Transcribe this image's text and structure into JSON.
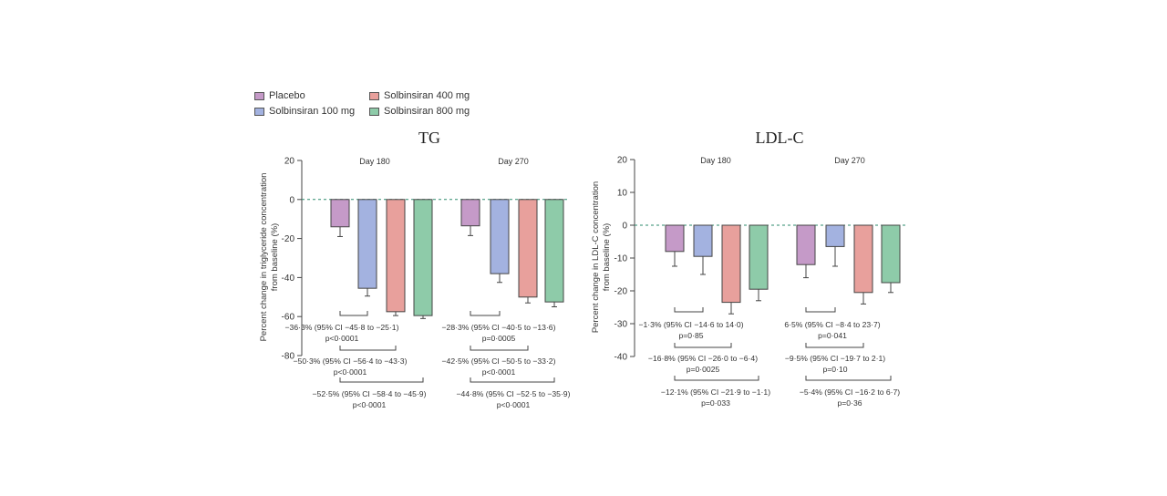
{
  "legend": [
    {
      "label": "Placebo",
      "color": "#c59ac8"
    },
    {
      "label": "Solbinsiran 100 mg",
      "color": "#a3b2e0"
    },
    {
      "label": "Solbinsiran 400 mg",
      "color": "#e8a09c"
    },
    {
      "label": "Solbinsiran 800 mg",
      "color": "#8ecba9"
    }
  ],
  "chart_data": [
    {
      "type": "bar",
      "title": "TG",
      "ylabel": "Percent change in triglyceride concentration from baseline (%)",
      "ylim": [
        -80,
        20
      ],
      "yticks": [
        "20",
        "0",
        "-20",
        "-40",
        "-60",
        "-80"
      ],
      "ytick_values": [
        20,
        0,
        -20,
        -40,
        -60,
        -80
      ],
      "categories": [
        "Day 180",
        "Day 270"
      ],
      "series": [
        {
          "name": "Placebo",
          "values": [
            -14,
            -13.5
          ],
          "error_low": [
            -19,
            -18.5
          ]
        },
        {
          "name": "Solbinsiran 100 mg",
          "values": [
            -45.5,
            -38
          ],
          "error_low": [
            -49.5,
            -42.5
          ]
        },
        {
          "name": "Solbinsiran 400 mg",
          "values": [
            -57.5,
            -50
          ],
          "error_low": [
            -59.5,
            -53
          ]
        },
        {
          "name": "Solbinsiran 800 mg",
          "values": [
            -59.5,
            -52.5
          ],
          "error_low": [
            -61,
            -55
          ]
        }
      ],
      "comparisons": [
        {
          "group": 0,
          "target": 1,
          "line1": "−36·3% (95% CI −45·8 to −25·1)",
          "line2": "p<0·0001"
        },
        {
          "group": 0,
          "target": 2,
          "line1": "−50·3% (95% CI −56·4 to −43·3)",
          "line2": "p<0·0001"
        },
        {
          "group": 0,
          "target": 3,
          "line1": "−52·5% (95% CI −58·4 to −45·9)",
          "line2": "p<0·0001"
        },
        {
          "group": 1,
          "target": 1,
          "line1": "−28·3% (95% CI −40·5 to −13·6)",
          "line2": "p=0·0005"
        },
        {
          "group": 1,
          "target": 2,
          "line1": "−42·5% (95% CI −50·5 to −33·2)",
          "line2": "p<0·0001"
        },
        {
          "group": 1,
          "target": 3,
          "line1": "−44·8% (95% CI −52·5 to −35·9)",
          "line2": "p<0·0001"
        }
      ]
    },
    {
      "type": "bar",
      "title": "LDL-C",
      "ylabel": "Percent change in LDL-C concentration from baseline (%)",
      "ylim": [
        -40,
        20
      ],
      "yticks": [
        "20",
        "10",
        "0",
        "-10",
        "-20",
        "-30",
        "-40"
      ],
      "ytick_values": [
        20,
        10,
        0,
        -10,
        -20,
        -30,
        -40
      ],
      "categories": [
        "Day 180",
        "Day 270"
      ],
      "series": [
        {
          "name": "Placebo",
          "values": [
            -8,
            -12
          ],
          "error_low": [
            -12.5,
            -16
          ]
        },
        {
          "name": "Solbinsiran 100 mg",
          "values": [
            -9.5,
            -6.5
          ],
          "error_low": [
            -15,
            -12.5
          ]
        },
        {
          "name": "Solbinsiran 400 mg",
          "values": [
            -23.5,
            -20.5
          ],
          "error_low": [
            -27,
            -24
          ]
        },
        {
          "name": "Solbinsiran 800 mg",
          "values": [
            -19.5,
            -17.5
          ],
          "error_low": [
            -23,
            -20.5
          ]
        }
      ],
      "comparisons": [
        {
          "group": 0,
          "target": 1,
          "line1": "−1·3% (95% CI −14·6 to 14·0)",
          "line2": "p=0·85"
        },
        {
          "group": 0,
          "target": 2,
          "line1": "−16·8% (95% CI −26·0 to −6·4)",
          "line2": "p=0·0025"
        },
        {
          "group": 0,
          "target": 3,
          "line1": "−12·1% (95% CI −21·9 to −1·1)",
          "line2": "p=0·033"
        },
        {
          "group": 1,
          "target": 1,
          "line1": "6·5% (95% CI −8·4 to 23·7)",
          "line2": "p=0·041"
        },
        {
          "group": 1,
          "target": 2,
          "line1": "−9·5% (95% CI −19·7 to 2·1)",
          "line2": "p=0·10"
        },
        {
          "group": 1,
          "target": 3,
          "line1": "−5·4% (95% CI −16·2 to 6·7)",
          "line2": "p=0·36"
        }
      ]
    }
  ]
}
